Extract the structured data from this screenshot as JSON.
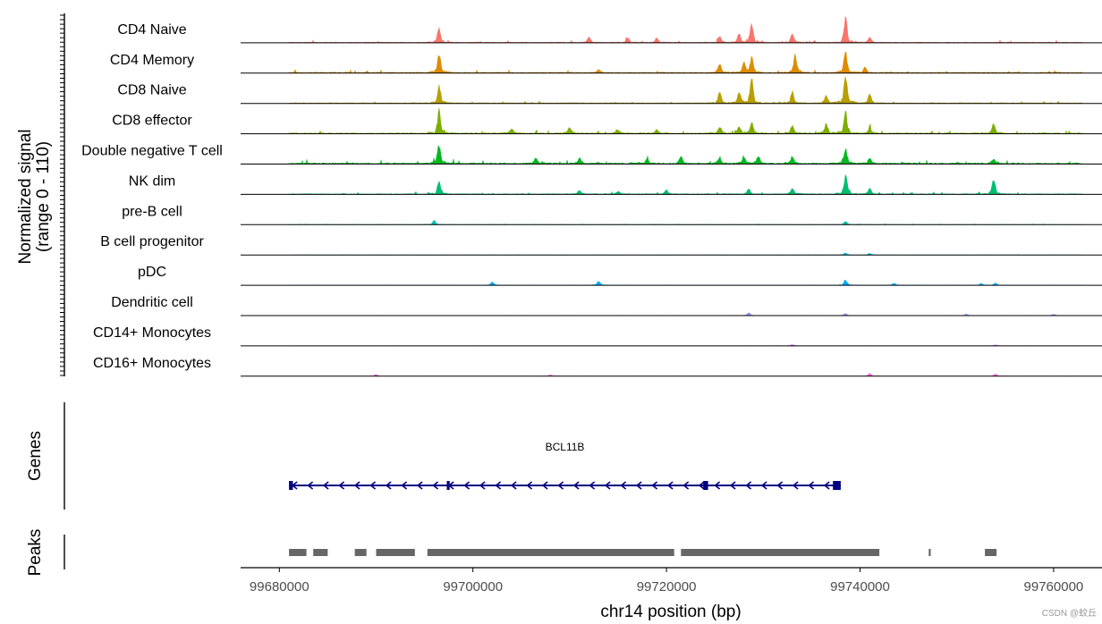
{
  "chart_data": {
    "type": "coverage",
    "y_axis_title": [
      "Normalized signal",
      "(range 0 - 110)"
    ],
    "ylim": [
      0,
      110
    ],
    "x_axis_title": "chr14 position (bp)",
    "x_ticks": [
      99680000,
      99700000,
      99720000,
      99740000,
      99760000
    ],
    "xlim": [
      99676000,
      99765000
    ],
    "data_range": [
      99681000,
      99763000
    ],
    "tracks": [
      {
        "name": "CD4 Naive",
        "color": "#f8766d",
        "base": 3,
        "peaks": [
          [
            99696500,
            55
          ],
          [
            99712000,
            20
          ],
          [
            99716000,
            18
          ],
          [
            99719000,
            16
          ],
          [
            99725500,
            25
          ],
          [
            99727500,
            32
          ],
          [
            99728800,
            65
          ],
          [
            99733000,
            30
          ],
          [
            99738500,
            90
          ],
          [
            99741000,
            20
          ]
        ]
      },
      {
        "name": "CD4 Memory",
        "color": "#de8c00",
        "base": 4,
        "peaks": [
          [
            99696500,
            70
          ],
          [
            99713000,
            12
          ],
          [
            99725500,
            30
          ],
          [
            99728000,
            40
          ],
          [
            99728800,
            55
          ],
          [
            99733300,
            60
          ],
          [
            99738500,
            75
          ],
          [
            99740500,
            20
          ]
        ]
      },
      {
        "name": "CD8 Naive",
        "color": "#b79f00",
        "base": 3,
        "peaks": [
          [
            99696500,
            60
          ],
          [
            99725500,
            40
          ],
          [
            99727500,
            38
          ],
          [
            99728800,
            85
          ],
          [
            99733000,
            40
          ],
          [
            99736500,
            30
          ],
          [
            99738500,
            110
          ],
          [
            99741000,
            35
          ]
        ]
      },
      {
        "name": "CD8 effector",
        "color": "#7cae00",
        "base": 4,
        "peaks": [
          [
            99696500,
            80
          ],
          [
            99704000,
            18
          ],
          [
            99710000,
            22
          ],
          [
            99715000,
            12
          ],
          [
            99719000,
            14
          ],
          [
            99725500,
            25
          ],
          [
            99727500,
            25
          ],
          [
            99728800,
            40
          ],
          [
            99733000,
            30
          ],
          [
            99736500,
            35
          ],
          [
            99738500,
            85
          ],
          [
            99741000,
            20
          ],
          [
            99753800,
            35
          ]
        ]
      },
      {
        "name": "Double negative T cell",
        "color": "#00b81f",
        "base": 5,
        "peaks": [
          [
            99696500,
            75
          ],
          [
            99706500,
            20
          ],
          [
            99711000,
            20
          ],
          [
            99718000,
            18
          ],
          [
            99721500,
            25
          ],
          [
            99725500,
            22
          ],
          [
            99728000,
            25
          ],
          [
            99729500,
            28
          ],
          [
            99733000,
            25
          ],
          [
            99738500,
            55
          ],
          [
            99741000,
            20
          ],
          [
            99753800,
            15
          ]
        ]
      },
      {
        "name": "NK dim",
        "color": "#00be70",
        "base": 3,
        "peaks": [
          [
            99696500,
            45
          ],
          [
            99711000,
            12
          ],
          [
            99715000,
            10
          ],
          [
            99720000,
            14
          ],
          [
            99728500,
            18
          ],
          [
            99733000,
            22
          ],
          [
            99738500,
            65
          ],
          [
            99741000,
            20
          ],
          [
            99753800,
            55
          ]
        ]
      },
      {
        "name": "pre-B cell",
        "color": "#00c1ab",
        "base": 1,
        "peaks": [
          [
            99696000,
            15
          ],
          [
            99738500,
            12
          ]
        ]
      },
      {
        "name": "B cell progenitor",
        "color": "#00bbda",
        "base": 0.5,
        "peaks": [
          [
            99738500,
            8
          ],
          [
            99741000,
            6
          ]
        ]
      },
      {
        "name": "pDC",
        "color": "#00acfc",
        "base": 0.6,
        "peaks": [
          [
            99702000,
            12
          ],
          [
            99713000,
            15
          ],
          [
            99738500,
            20
          ],
          [
            99743500,
            8
          ],
          [
            99752500,
            6
          ],
          [
            99754000,
            8
          ]
        ]
      },
      {
        "name": "Dendritic cell",
        "color": "#8b93ff",
        "base": 0.5,
        "peaks": [
          [
            99728500,
            10
          ],
          [
            99738500,
            8
          ],
          [
            99751000,
            5
          ],
          [
            99760000,
            5
          ]
        ]
      },
      {
        "name": "CD14+ Monocytes",
        "color": "#d575fe",
        "base": 0.4,
        "peaks": [
          [
            99733000,
            5
          ],
          [
            99754000,
            4
          ]
        ]
      },
      {
        "name": "CD16+ Monocytes",
        "color": "#f962dd",
        "base": 0.6,
        "peaks": [
          [
            99690000,
            6
          ],
          [
            99708000,
            5
          ],
          [
            99741000,
            10
          ],
          [
            99754000,
            8
          ]
        ]
      }
    ],
    "genes": {
      "title": "Genes",
      "items": [
        {
          "name": "BCL11B",
          "start": 99681000,
          "end": 99738000,
          "strand": "-",
          "exons": [
            [
              99681000,
              99681400
            ],
            [
              99697300,
              99697600
            ],
            [
              99723800,
              99724300
            ],
            [
              99737200,
              99738000
            ]
          ]
        }
      ]
    },
    "peaks": {
      "title": "Peaks",
      "regions": [
        [
          99681000,
          99682800
        ],
        [
          99683500,
          99685000
        ],
        [
          99687800,
          99689000
        ],
        [
          99690000,
          99694000
        ],
        [
          99695300,
          99720800
        ],
        [
          99721500,
          99742000
        ],
        [
          99747100,
          99747300
        ],
        [
          99752900,
          99754100
        ]
      ]
    }
  },
  "watermark": "CSDN @蚊丘"
}
